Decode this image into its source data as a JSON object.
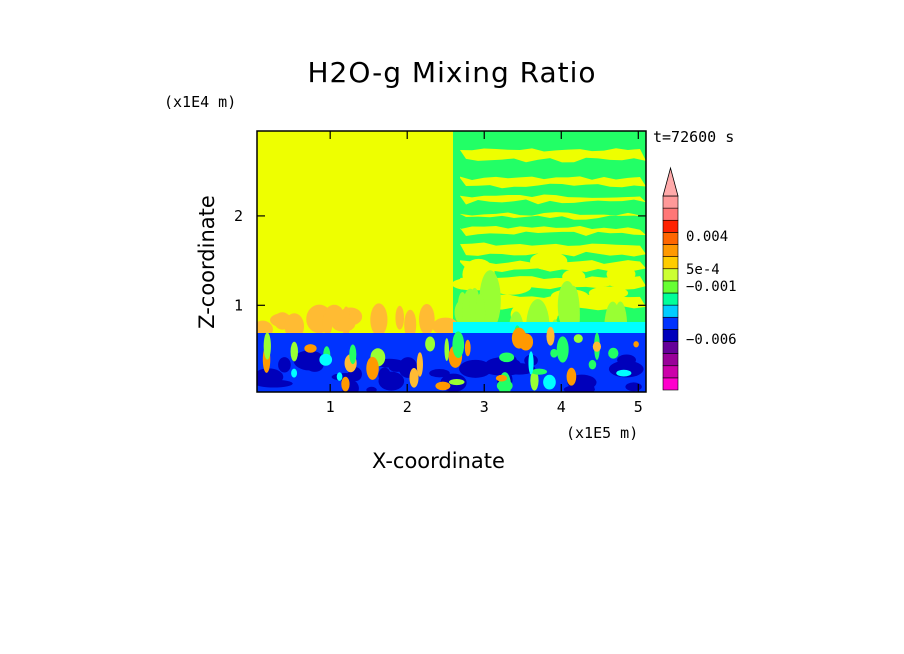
{
  "chart_data": {
    "type": "heatmap",
    "title": "H2O-g Mixing Ratio",
    "xlabel": "X-coordinate",
    "ylabel": "Z-coordinate",
    "x_multiplier": "(x1E5 m)",
    "y_multiplier": "(x1E4 m)",
    "time_label": "t=72600 s",
    "xlim": [
      0.05,
      5.1
    ],
    "ylim": [
      0.03,
      2.95
    ],
    "x_ticks": [
      "1",
      "2",
      "3",
      "4",
      "5"
    ],
    "x_tick_values": [
      1,
      2,
      3,
      4,
      5
    ],
    "y_ticks": [
      "1",
      "2"
    ],
    "y_tick_values": [
      1,
      2
    ],
    "colorbar": {
      "colors": [
        "#ff00cc",
        "#cc00aa",
        "#990099",
        "#660099",
        "#0000bb",
        "#0033ff",
        "#00ccff",
        "#00ff99",
        "#66ff33",
        "#ccff33",
        "#ffcc00",
        "#ff9900",
        "#ff6600",
        "#ff2200",
        "#ff7777",
        "#ff9999"
      ],
      "labels": [
        "0.004",
        "5e-4",
        "−0.001",
        "−0.006"
      ],
      "extend": "max"
    },
    "regions": {
      "upper_left_value": "5e-4",
      "upper_right_values": [
        "5e-4",
        "−0.001"
      ],
      "lower_band_values": [
        "−0.001",
        "−0.006"
      ]
    }
  },
  "colors": {
    "yellow": "#eeff00",
    "green": "#22ff66",
    "light_green": "#99ff33",
    "cyan": "#00ffff",
    "blue": "#0033ff",
    "dark_blue": "#0000bb",
    "orange": "#ffbb33",
    "dark_orange": "#ff9900"
  }
}
